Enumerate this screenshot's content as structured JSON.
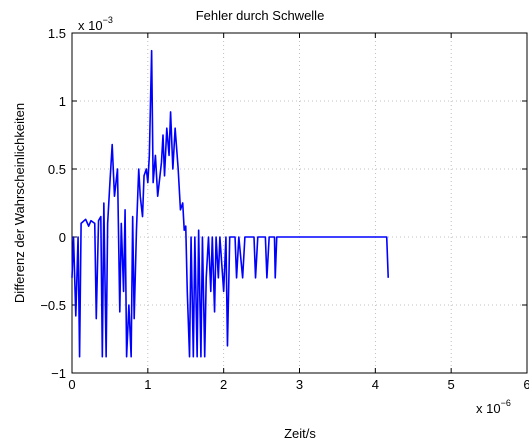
{
  "chart_data": {
    "type": "line",
    "title": "Fehler durch Schwelle",
    "x_label": "Zeit/s",
    "y_label": "Differenz der Wahrscheinlichkeiten",
    "x_multiplier": {
      "base": "x 10",
      "exponent": "−6"
    },
    "y_multiplier": {
      "base": "x 10",
      "exponent": "−3"
    },
    "color": "#0000ff",
    "grid": true,
    "xlim": [
      0,
      6
    ],
    "ylim": [
      -1,
      1.5
    ],
    "xticks": [
      0,
      1,
      2,
      3,
      4,
      5,
      6
    ],
    "yticks": [
      {
        "value": -1,
        "label": "−1"
      },
      {
        "value": -0.5,
        "label": "−0.5"
      },
      0,
      0.5,
      1,
      1.5
    ],
    "x": [
      0,
      0.02,
      0.05,
      0.08,
      0.1,
      0.12,
      0.18,
      0.22,
      0.25,
      0.3,
      0.32,
      0.35,
      0.38,
      0.4,
      0.42,
      0.45,
      0.47,
      0.5,
      0.53,
      0.56,
      0.6,
      0.63,
      0.65,
      0.68,
      0.7,
      0.72,
      0.75,
      0.78,
      0.8,
      0.82,
      0.85,
      0.88,
      0.9,
      0.93,
      0.95,
      0.98,
      1.0,
      1.02,
      1.05,
      1.07,
      1.1,
      1.13,
      1.15,
      1.18,
      1.2,
      1.22,
      1.25,
      1.28,
      1.3,
      1.33,
      1.36,
      1.4,
      1.43,
      1.46,
      1.48,
      1.5,
      1.52,
      1.55,
      1.57,
      1.6,
      1.62,
      1.65,
      1.67,
      1.7,
      1.72,
      1.75,
      1.77,
      1.8,
      1.83,
      1.85,
      1.88,
      1.9,
      1.93,
      1.95,
      2.0,
      2.03,
      2.05,
      2.08,
      2.15,
      2.17,
      2.2,
      2.25,
      2.28,
      2.4,
      2.42,
      2.45,
      2.55,
      2.57,
      2.6,
      2.67,
      2.68,
      2.7,
      4.15,
      4.17
    ],
    "values": [
      -0.3,
      0,
      -0.58,
      0,
      -0.88,
      0.1,
      0.13,
      0.08,
      0.12,
      0.1,
      -0.6,
      0.12,
      0.15,
      -0.88,
      0.25,
      -0.88,
      0.1,
      0.4,
      0.68,
      0.3,
      0.5,
      -0.55,
      0.1,
      -0.4,
      0.2,
      -0.88,
      -0.5,
      -0.88,
      0.15,
      -0.6,
      0.05,
      0.5,
      0.3,
      0.15,
      0.45,
      0.5,
      0.4,
      0.6,
      1.37,
      0.4,
      0.6,
      0.3,
      0.4,
      0.55,
      0.75,
      0.45,
      0.8,
      0.6,
      0.92,
      0.5,
      0.8,
      0.5,
      0.2,
      0.25,
      0.05,
      0.08,
      -0.4,
      -0.88,
      0,
      -0.88,
      0,
      -0.88,
      0.05,
      -0.88,
      0,
      -0.88,
      -0.3,
      0,
      -0.4,
      0,
      -0.55,
      0,
      -0.3,
      0,
      -0.4,
      0,
      -0.8,
      0,
      0,
      -0.3,
      0,
      -0.3,
      0,
      0,
      -0.3,
      0,
      0,
      -0.3,
      0,
      0,
      -0.3,
      0,
      0,
      -0.3
    ]
  }
}
